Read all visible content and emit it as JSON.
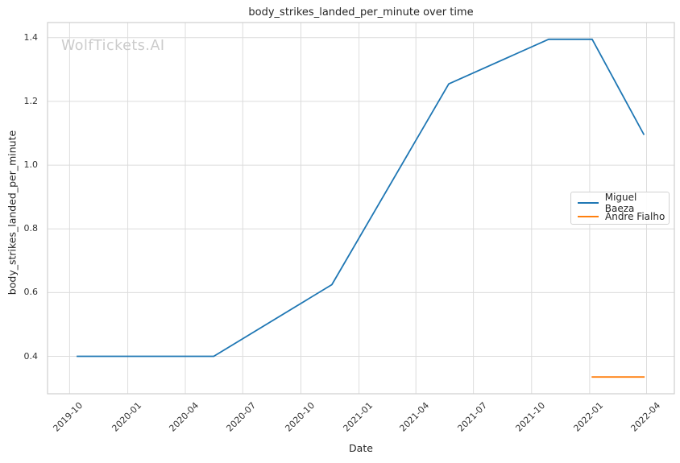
{
  "figure": {
    "watermark": {
      "text": "WolfTickets.AI",
      "color": "#cbcbcb"
    }
  },
  "chart_data": {
    "type": "line",
    "title": "body_strikes_landed_per_minute over time",
    "xlabel": "Date",
    "ylabel": "body_strikes_landed_per_minute",
    "grid": true,
    "legend_position": "center right",
    "xlim": [
      "2019-08-27",
      "2022-05-15"
    ],
    "ylim": [
      0.2825,
      1.4475
    ],
    "x_ticks": [
      {
        "label": "2019-10",
        "date": "2019-10-01"
      },
      {
        "label": "2020-01",
        "date": "2020-01-01"
      },
      {
        "label": "2020-04",
        "date": "2020-04-01"
      },
      {
        "label": "2020-07",
        "date": "2020-07-01"
      },
      {
        "label": "2020-10",
        "date": "2020-10-01"
      },
      {
        "label": "2021-01",
        "date": "2021-01-01"
      },
      {
        "label": "2021-04",
        "date": "2021-04-01"
      },
      {
        "label": "2021-07",
        "date": "2021-07-01"
      },
      {
        "label": "2021-10",
        "date": "2021-10-01"
      },
      {
        "label": "2022-01",
        "date": "2022-01-01"
      },
      {
        "label": "2022-04",
        "date": "2022-04-01"
      }
    ],
    "y_ticks": [
      0.4,
      0.6,
      0.8,
      1.0,
      1.2,
      1.4
    ],
    "series": [
      {
        "name": "Miguel Baeza",
        "color": "#1f77b4",
        "points": [
          [
            "2019-10-12",
            0.4
          ],
          [
            "2020-05-16",
            0.4
          ],
          [
            "2020-11-19",
            0.625
          ],
          [
            "2021-05-23",
            1.255
          ],
          [
            "2021-10-28",
            1.395
          ],
          [
            "2022-01-05",
            1.395
          ],
          [
            "2022-03-28",
            1.095
          ]
        ]
      },
      {
        "name": "Andre Fialho",
        "color": "#ff7f0e",
        "points": [
          [
            "2022-01-04",
            0.335
          ],
          [
            "2022-03-29",
            0.335
          ]
        ]
      }
    ],
    "colors": {
      "grid": "#dcdcdc",
      "spine": "#cfcfcf",
      "text": "#262626"
    }
  }
}
